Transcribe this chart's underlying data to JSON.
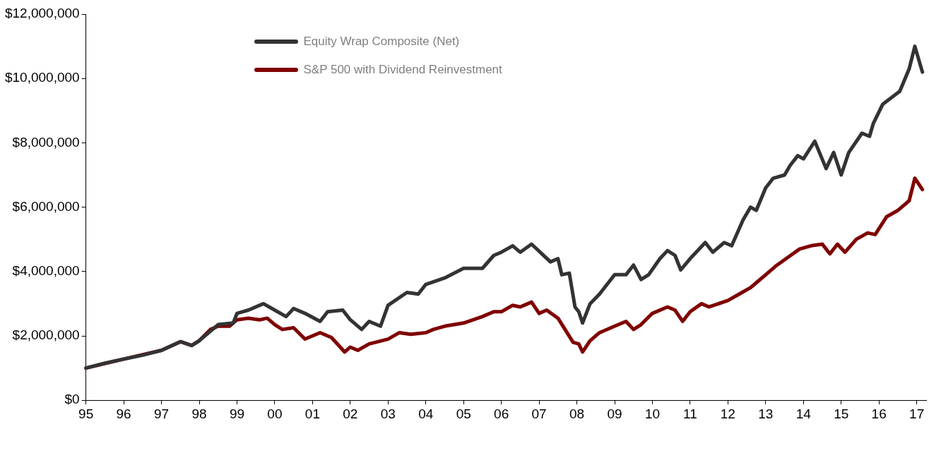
{
  "chart_data": {
    "type": "line",
    "legend": "top left",
    "grid": false,
    "marker": "none",
    "line_style": "solid",
    "xlim": [
      1995,
      2017.25
    ],
    "ylim": [
      0,
      12000000
    ],
    "xticks": [
      {
        "value": 1995,
        "label": "95"
      },
      {
        "value": 1996,
        "label": "96"
      },
      {
        "value": 1997,
        "label": "97"
      },
      {
        "value": 1998,
        "label": "98"
      },
      {
        "value": 1999,
        "label": "99"
      },
      {
        "value": 2000,
        "label": "00"
      },
      {
        "value": 2001,
        "label": "01"
      },
      {
        "value": 2002,
        "label": "02"
      },
      {
        "value": 2003,
        "label": "03"
      },
      {
        "value": 2004,
        "label": "04"
      },
      {
        "value": 2005,
        "label": "05"
      },
      {
        "value": 2006,
        "label": "06"
      },
      {
        "value": 2007,
        "label": "07"
      },
      {
        "value": 2008,
        "label": "08"
      },
      {
        "value": 2009,
        "label": "09"
      },
      {
        "value": 2010,
        "label": "10"
      },
      {
        "value": 2011,
        "label": "11"
      },
      {
        "value": 2012,
        "label": "12"
      },
      {
        "value": 2013,
        "label": "13"
      },
      {
        "value": 2014,
        "label": "14"
      },
      {
        "value": 2015,
        "label": "15"
      },
      {
        "value": 2016,
        "label": "16"
      },
      {
        "value": 2017,
        "label": "17"
      }
    ],
    "yticks": [
      {
        "value": 0,
        "label": "$0"
      },
      {
        "value": 2000000,
        "label": "$2,000,000"
      },
      {
        "value": 4000000,
        "label": "$4,000,000"
      },
      {
        "value": 6000000,
        "label": "$6,000,000"
      },
      {
        "value": 8000000,
        "label": "$8,000,000"
      },
      {
        "value": 10000000,
        "label": "$10,000,000"
      },
      {
        "value": 12000000,
        "label": "$12,000,000"
      }
    ],
    "series": [
      {
        "name": "Equity Wrap Composite (Net)",
        "color": "#333333",
        "x": [
          1995,
          1995.5,
          1996,
          1996.5,
          1997,
          1997.5,
          1997.8,
          1998,
          1998.5,
          1998.9,
          1999,
          1999.3,
          1999.7,
          2000,
          2000.3,
          2000.5,
          2000.8,
          2001.2,
          2001.4,
          2001.8,
          2002,
          2002.3,
          2002.5,
          2002.8,
          2003,
          2003.5,
          2003.8,
          2004,
          2004.5,
          2005,
          2005.5,
          2005.8,
          2006,
          2006.3,
          2006.5,
          2006.8,
          2007.3,
          2007.5,
          2007.6,
          2007.8,
          2007.95,
          2008.05,
          2008.15,
          2008.35,
          2008.6,
          2008.8,
          2009,
          2009.3,
          2009.5,
          2009.7,
          2009.9,
          2010.2,
          2010.4,
          2010.6,
          2010.75,
          2011,
          2011.4,
          2011.6,
          2011.9,
          2012.1,
          2012.4,
          2012.6,
          2012.75,
          2013,
          2013.2,
          2013.5,
          2013.65,
          2013.85,
          2014,
          2014.3,
          2014.6,
          2014.8,
          2015,
          2015.2,
          2015.55,
          2015.75,
          2015.85,
          2016.1,
          2016.55,
          2016.8,
          2016.95,
          2017.15
        ],
        "values": [
          1000000,
          1150000,
          1280000,
          1400000,
          1550000,
          1820000,
          1700000,
          1850000,
          2350000,
          2400000,
          2700000,
          2800000,
          3000000,
          2800000,
          2600000,
          2850000,
          2700000,
          2450000,
          2750000,
          2800000,
          2500000,
          2200000,
          2450000,
          2300000,
          2950000,
          3350000,
          3300000,
          3600000,
          3800000,
          4100000,
          4100000,
          4500000,
          4600000,
          4800000,
          4600000,
          4850000,
          4300000,
          4400000,
          3900000,
          3950000,
          2900000,
          2750000,
          2400000,
          3000000,
          3300000,
          3600000,
          3900000,
          3900000,
          4200000,
          3750000,
          3900000,
          4400000,
          4650000,
          4500000,
          4050000,
          4400000,
          4900000,
          4600000,
          4900000,
          4800000,
          5600000,
          6000000,
          5900000,
          6600000,
          6900000,
          7000000,
          7300000,
          7600000,
          7500000,
          8050000,
          7200000,
          7700000,
          7000000,
          7700000,
          8300000,
          8200000,
          8600000,
          9200000,
          9600000,
          10300000,
          11000000,
          10200000
        ]
      },
      {
        "name": "S&P 500 with Dividend Reinvestment",
        "color": "#7f0000",
        "x": [
          1995,
          1996,
          1997,
          1997.5,
          1997.8,
          1998,
          1998.3,
          1998.5,
          1998.8,
          1999,
          1999.3,
          1999.6,
          1999.8,
          2000,
          2000.2,
          2000.5,
          2000.8,
          2001,
          2001.2,
          2001.5,
          2001.85,
          2002,
          2002.2,
          2002.5,
          2003,
          2003.3,
          2003.6,
          2004,
          2004.2,
          2004.5,
          2005,
          2005.5,
          2005.8,
          2006,
          2006.3,
          2006.5,
          2006.8,
          2007,
          2007.2,
          2007.5,
          2007.9,
          2008.05,
          2008.15,
          2008.35,
          2008.6,
          2009,
          2009.3,
          2009.5,
          2009.7,
          2010,
          2010.4,
          2010.6,
          2010.8,
          2011,
          2011.3,
          2011.5,
          2012,
          2012.3,
          2012.6,
          2012.8,
          2013,
          2013.3,
          2013.6,
          2013.9,
          2014.2,
          2014.5,
          2014.7,
          2014.9,
          2015.1,
          2015.4,
          2015.7,
          2015.9,
          2016.2,
          2016.5,
          2016.8,
          2016.95,
          2017.15
        ],
        "values": [
          1000000,
          1280000,
          1550000,
          1820000,
          1700000,
          1850000,
          2200000,
          2300000,
          2300000,
          2500000,
          2550000,
          2500000,
          2550000,
          2350000,
          2200000,
          2250000,
          1900000,
          2000000,
          2100000,
          1950000,
          1500000,
          1650000,
          1550000,
          1750000,
          1900000,
          2100000,
          2050000,
          2100000,
          2200000,
          2300000,
          2400000,
          2600000,
          2750000,
          2750000,
          2950000,
          2900000,
          3050000,
          2700000,
          2800000,
          2550000,
          1800000,
          1750000,
          1500000,
          1850000,
          2100000,
          2300000,
          2450000,
          2200000,
          2350000,
          2700000,
          2900000,
          2800000,
          2450000,
          2750000,
          3000000,
          2900000,
          3100000,
          3300000,
          3500000,
          3700000,
          3900000,
          4200000,
          4450000,
          4700000,
          4800000,
          4850000,
          4550000,
          4850000,
          4600000,
          5000000,
          5200000,
          5150000,
          5700000,
          5900000,
          6200000,
          6900000,
          6550000
        ]
      }
    ]
  }
}
